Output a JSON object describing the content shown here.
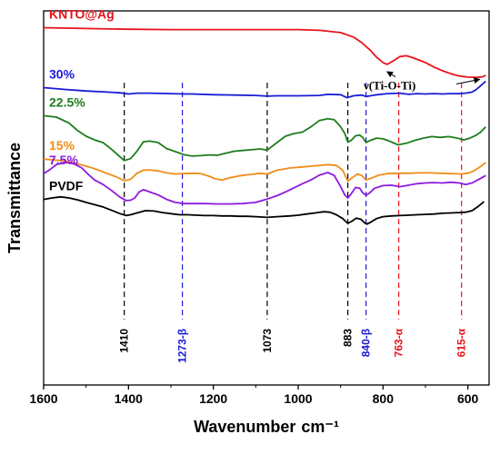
{
  "chart_data": {
    "type": "line",
    "title": "",
    "xlabel": "Wavenumber",
    "xlabel_unit": "cm⁻¹",
    "ylabel": "Transmittance",
    "xlim": [
      1600,
      550
    ],
    "x_reversed": true,
    "y_ticks_shown": false,
    "grid": false,
    "x_ticks": [
      1600,
      1400,
      1200,
      1000,
      800,
      600
    ],
    "series": [
      {
        "name": "KNTO@Ag",
        "color": "#e8141b",
        "points": [
          [
            1600,
            0.955
          ],
          [
            1500,
            0.953
          ],
          [
            1400,
            0.951
          ],
          [
            1300,
            0.95
          ],
          [
            1200,
            0.95
          ],
          [
            1100,
            0.95
          ],
          [
            1000,
            0.95
          ],
          [
            950,
            0.948
          ],
          [
            900,
            0.942
          ],
          [
            870,
            0.93
          ],
          [
            850,
            0.915
          ],
          [
            830,
            0.895
          ],
          [
            815,
            0.876
          ],
          [
            800,
            0.862
          ],
          [
            790,
            0.857
          ],
          [
            775,
            0.867
          ],
          [
            760,
            0.878
          ],
          [
            745,
            0.88
          ],
          [
            730,
            0.875
          ],
          [
            700,
            0.862
          ],
          [
            680,
            0.85
          ],
          [
            660,
            0.84
          ],
          [
            640,
            0.832
          ],
          [
            620,
            0.826
          ],
          [
            600,
            0.823
          ],
          [
            580,
            0.822
          ],
          [
            565,
            0.824
          ],
          [
            558,
            0.828
          ]
        ]
      },
      {
        "name": "30%",
        "color": "#1a1ad6",
        "points": [
          [
            1600,
            0.795
          ],
          [
            1550,
            0.79
          ],
          [
            1500,
            0.786
          ],
          [
            1450,
            0.783
          ],
          [
            1420,
            0.781
          ],
          [
            1400,
            0.778
          ],
          [
            1380,
            0.78
          ],
          [
            1350,
            0.78
          ],
          [
            1300,
            0.779
          ],
          [
            1270,
            0.778
          ],
          [
            1250,
            0.778
          ],
          [
            1200,
            0.776
          ],
          [
            1150,
            0.775
          ],
          [
            1100,
            0.774
          ],
          [
            1073,
            0.772
          ],
          [
            1050,
            0.773
          ],
          [
            1000,
            0.773
          ],
          [
            950,
            0.774
          ],
          [
            930,
            0.777
          ],
          [
            900,
            0.776
          ],
          [
            885,
            0.768
          ],
          [
            870,
            0.773
          ],
          [
            850,
            0.775
          ],
          [
            840,
            0.771
          ],
          [
            820,
            0.775
          ],
          [
            790,
            0.779
          ],
          [
            760,
            0.78
          ],
          [
            740,
            0.777
          ],
          [
            720,
            0.779
          ],
          [
            700,
            0.778
          ],
          [
            680,
            0.779
          ],
          [
            660,
            0.778
          ],
          [
            640,
            0.779
          ],
          [
            620,
            0.779
          ],
          [
            605,
            0.78
          ],
          [
            590,
            0.783
          ],
          [
            580,
            0.79
          ],
          [
            570,
            0.8
          ],
          [
            558,
            0.812
          ]
        ]
      },
      {
        "name": "22.5%",
        "color": "#1e7d1e",
        "points": [
          [
            1600,
            0.72
          ],
          [
            1570,
            0.716
          ],
          [
            1540,
            0.7
          ],
          [
            1520,
            0.68
          ],
          [
            1500,
            0.665
          ],
          [
            1480,
            0.655
          ],
          [
            1460,
            0.648
          ],
          [
            1440,
            0.63
          ],
          [
            1420,
            0.61
          ],
          [
            1410,
            0.6
          ],
          [
            1395,
            0.605
          ],
          [
            1380,
            0.625
          ],
          [
            1365,
            0.65
          ],
          [
            1350,
            0.652
          ],
          [
            1330,
            0.648
          ],
          [
            1310,
            0.632
          ],
          [
            1290,
            0.624
          ],
          [
            1270,
            0.616
          ],
          [
            1250,
            0.612
          ],
          [
            1230,
            0.613
          ],
          [
            1210,
            0.615
          ],
          [
            1190,
            0.614
          ],
          [
            1170,
            0.62
          ],
          [
            1150,
            0.625
          ],
          [
            1130,
            0.627
          ],
          [
            1110,
            0.629
          ],
          [
            1090,
            0.631
          ],
          [
            1073,
            0.628
          ],
          [
            1050,
            0.648
          ],
          [
            1030,
            0.665
          ],
          [
            1010,
            0.672
          ],
          [
            990,
            0.676
          ],
          [
            970,
            0.69
          ],
          [
            950,
            0.707
          ],
          [
            930,
            0.712
          ],
          [
            915,
            0.709
          ],
          [
            900,
            0.69
          ],
          [
            890,
            0.672
          ],
          [
            883,
            0.649
          ],
          [
            875,
            0.654
          ],
          [
            865,
            0.666
          ],
          [
            855,
            0.668
          ],
          [
            848,
            0.662
          ],
          [
            840,
            0.648
          ],
          [
            830,
            0.654
          ],
          [
            815,
            0.66
          ],
          [
            800,
            0.658
          ],
          [
            785,
            0.652
          ],
          [
            765,
            0.642
          ],
          [
            745,
            0.646
          ],
          [
            725,
            0.654
          ],
          [
            705,
            0.66
          ],
          [
            685,
            0.664
          ],
          [
            665,
            0.662
          ],
          [
            645,
            0.664
          ],
          [
            625,
            0.66
          ],
          [
            610,
            0.655
          ],
          [
            595,
            0.66
          ],
          [
            580,
            0.668
          ],
          [
            570,
            0.676
          ],
          [
            558,
            0.69
          ]
        ]
      },
      {
        "name": "15%",
        "color": "#f08c1a",
        "points": [
          [
            1600,
            0.604
          ],
          [
            1560,
            0.6
          ],
          [
            1530,
            0.594
          ],
          [
            1510,
            0.588
          ],
          [
            1490,
            0.582
          ],
          [
            1470,
            0.574
          ],
          [
            1450,
            0.565
          ],
          [
            1430,
            0.557
          ],
          [
            1410,
            0.546
          ],
          [
            1395,
            0.55
          ],
          [
            1380,
            0.566
          ],
          [
            1365,
            0.574
          ],
          [
            1350,
            0.575
          ],
          [
            1330,
            0.572
          ],
          [
            1310,
            0.567
          ],
          [
            1290,
            0.564
          ],
          [
            1270,
            0.565
          ],
          [
            1250,
            0.566
          ],
          [
            1230,
            0.565
          ],
          [
            1210,
            0.558
          ],
          [
            1195,
            0.551
          ],
          [
            1180,
            0.548
          ],
          [
            1165,
            0.553
          ],
          [
            1140,
            0.559
          ],
          [
            1110,
            0.563
          ],
          [
            1090,
            0.566
          ],
          [
            1073,
            0.564
          ],
          [
            1050,
            0.574
          ],
          [
            1020,
            0.58
          ],
          [
            990,
            0.583
          ],
          [
            960,
            0.586
          ],
          [
            930,
            0.589
          ],
          [
            910,
            0.587
          ],
          [
            895,
            0.574
          ],
          [
            883,
            0.545
          ],
          [
            873,
            0.554
          ],
          [
            860,
            0.564
          ],
          [
            850,
            0.56
          ],
          [
            840,
            0.548
          ],
          [
            828,
            0.553
          ],
          [
            810,
            0.561
          ],
          [
            790,
            0.565
          ],
          [
            765,
            0.566
          ],
          [
            740,
            0.566
          ],
          [
            715,
            0.567
          ],
          [
            690,
            0.567
          ],
          [
            665,
            0.566
          ],
          [
            640,
            0.565
          ],
          [
            615,
            0.564
          ],
          [
            600,
            0.566
          ],
          [
            585,
            0.573
          ],
          [
            570,
            0.584
          ],
          [
            558,
            0.595
          ]
        ]
      },
      {
        "name": "7.5%",
        "color": "#8c1ae0",
        "points": [
          [
            1600,
            0.565
          ],
          [
            1585,
            0.576
          ],
          [
            1570,
            0.589
          ],
          [
            1550,
            0.595
          ],
          [
            1530,
            0.592
          ],
          [
            1510,
            0.58
          ],
          [
            1495,
            0.563
          ],
          [
            1480,
            0.548
          ],
          [
            1460,
            0.536
          ],
          [
            1440,
            0.52
          ],
          [
            1420,
            0.502
          ],
          [
            1405,
            0.493
          ],
          [
            1395,
            0.494
          ],
          [
            1385,
            0.5
          ],
          [
            1375,
            0.516
          ],
          [
            1365,
            0.522
          ],
          [
            1350,
            0.516
          ],
          [
            1330,
            0.508
          ],
          [
            1310,
            0.496
          ],
          [
            1290,
            0.488
          ],
          [
            1270,
            0.485
          ],
          [
            1250,
            0.485
          ],
          [
            1220,
            0.485
          ],
          [
            1190,
            0.484
          ],
          [
            1160,
            0.484
          ],
          [
            1130,
            0.485
          ],
          [
            1100,
            0.488
          ],
          [
            1073,
            0.497
          ],
          [
            1050,
            0.506
          ],
          [
            1030,
            0.516
          ],
          [
            1010,
            0.527
          ],
          [
            990,
            0.538
          ],
          [
            970,
            0.548
          ],
          [
            950,
            0.561
          ],
          [
            930,
            0.568
          ],
          [
            915,
            0.56
          ],
          [
            900,
            0.53
          ],
          [
            890,
            0.508
          ],
          [
            883,
            0.5
          ],
          [
            875,
            0.511
          ],
          [
            865,
            0.528
          ],
          [
            855,
            0.526
          ],
          [
            848,
            0.514
          ],
          [
            840,
            0.507
          ],
          [
            832,
            0.513
          ],
          [
            820,
            0.526
          ],
          [
            800,
            0.533
          ],
          [
            780,
            0.534
          ],
          [
            760,
            0.53
          ],
          [
            740,
            0.534
          ],
          [
            720,
            0.538
          ],
          [
            700,
            0.54
          ],
          [
            680,
            0.541
          ],
          [
            660,
            0.54
          ],
          [
            640,
            0.542
          ],
          [
            620,
            0.54
          ],
          [
            605,
            0.536
          ],
          [
            590,
            0.54
          ],
          [
            575,
            0.549
          ],
          [
            558,
            0.56
          ]
        ]
      },
      {
        "name": "PVDF",
        "color": "#000000",
        "points": [
          [
            1600,
            0.496
          ],
          [
            1580,
            0.5
          ],
          [
            1560,
            0.503
          ],
          [
            1540,
            0.5
          ],
          [
            1520,
            0.495
          ],
          [
            1500,
            0.488
          ],
          [
            1480,
            0.482
          ],
          [
            1460,
            0.476
          ],
          [
            1440,
            0.467
          ],
          [
            1420,
            0.458
          ],
          [
            1405,
            0.453
          ],
          [
            1395,
            0.455
          ],
          [
            1380,
            0.46
          ],
          [
            1360,
            0.466
          ],
          [
            1340,
            0.465
          ],
          [
            1320,
            0.461
          ],
          [
            1300,
            0.458
          ],
          [
            1280,
            0.455
          ],
          [
            1260,
            0.455
          ],
          [
            1240,
            0.454
          ],
          [
            1220,
            0.453
          ],
          [
            1200,
            0.453
          ],
          [
            1180,
            0.452
          ],
          [
            1160,
            0.452
          ],
          [
            1140,
            0.451
          ],
          [
            1120,
            0.451
          ],
          [
            1100,
            0.45
          ],
          [
            1073,
            0.448
          ],
          [
            1050,
            0.45
          ],
          [
            1020,
            0.452
          ],
          [
            1000,
            0.454
          ],
          [
            980,
            0.457
          ],
          [
            960,
            0.46
          ],
          [
            940,
            0.463
          ],
          [
            925,
            0.462
          ],
          [
            910,
            0.455
          ],
          [
            895,
            0.445
          ],
          [
            883,
            0.432
          ],
          [
            873,
            0.438
          ],
          [
            863,
            0.446
          ],
          [
            852,
            0.443
          ],
          [
            845,
            0.435
          ],
          [
            838,
            0.43
          ],
          [
            828,
            0.436
          ],
          [
            815,
            0.445
          ],
          [
            800,
            0.45
          ],
          [
            780,
            0.452
          ],
          [
            760,
            0.453
          ],
          [
            740,
            0.454
          ],
          [
            720,
            0.455
          ],
          [
            700,
            0.456
          ],
          [
            680,
            0.457
          ],
          [
            660,
            0.459
          ],
          [
            640,
            0.46
          ],
          [
            620,
            0.461
          ],
          [
            605,
            0.462
          ],
          [
            590,
            0.466
          ],
          [
            575,
            0.478
          ],
          [
            562,
            0.49
          ]
        ]
      }
    ],
    "peak_markers": [
      {
        "x": 1410,
        "label": "1410",
        "color": "#000000"
      },
      {
        "x": 1273,
        "label": "1273-β",
        "color": "#1a1ad6"
      },
      {
        "x": 1073,
        "label": "1073",
        "color": "#000000"
      },
      {
        "x": 883,
        "label": "883",
        "color": "#000000"
      },
      {
        "x": 840,
        "label": "840-β",
        "color": "#1a1ad6"
      },
      {
        "x": 763,
        "label": "763-α",
        "color": "#e8141b"
      },
      {
        "x": 615,
        "label": "615-α",
        "color": "#e8141b"
      }
    ],
    "annotations": [
      {
        "text": "ν(Ti-O-Ti)",
        "arrow_targets": [
          [
            795,
            0.857
          ],
          [
            572,
            0.822
          ]
        ]
      }
    ]
  }
}
